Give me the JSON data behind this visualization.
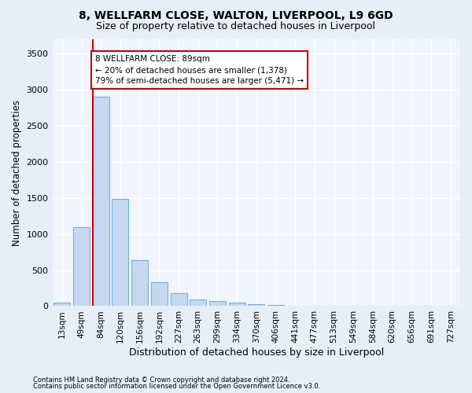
{
  "title1": "8, WELLFARM CLOSE, WALTON, LIVERPOOL, L9 6GD",
  "title2": "Size of property relative to detached houses in Liverpool",
  "xlabel": "Distribution of detached houses by size in Liverpool",
  "ylabel": "Number of detached properties",
  "categories": [
    "13sqm",
    "49sqm",
    "84sqm",
    "120sqm",
    "156sqm",
    "192sqm",
    "227sqm",
    "263sqm",
    "299sqm",
    "334sqm",
    "370sqm",
    "406sqm",
    "441sqm",
    "477sqm",
    "513sqm",
    "549sqm",
    "584sqm",
    "620sqm",
    "656sqm",
    "691sqm",
    "727sqm"
  ],
  "values": [
    50,
    1090,
    2900,
    1490,
    640,
    330,
    175,
    95,
    65,
    45,
    30,
    20,
    10,
    5,
    2,
    1,
    0,
    0,
    0,
    0,
    0
  ],
  "bar_color": "#c5d8f0",
  "bar_edge_color": "#7aaed6",
  "vline_x_index": 2,
  "vline_color": "#cc0000",
  "annotation_line1": "8 WELLFARM CLOSE: 89sqm",
  "annotation_line2": "← 20% of detached houses are smaller (1,378)",
  "annotation_line3": "79% of semi-detached houses are larger (5,471) →",
  "annotation_box_color": "#ffffff",
  "annotation_box_edge": "#cc0000",
  "ylim": [
    0,
    3700
  ],
  "yticks": [
    0,
    500,
    1000,
    1500,
    2000,
    2500,
    3000,
    3500
  ],
  "bg_color": "#e8eef8",
  "plot_bg_color": "#f0f4fc",
  "grid_color": "#ffffff",
  "footer1": "Contains HM Land Registry data © Crown copyright and database right 2024.",
  "footer2": "Contains public sector information licensed under the Open Government Licence v3.0."
}
